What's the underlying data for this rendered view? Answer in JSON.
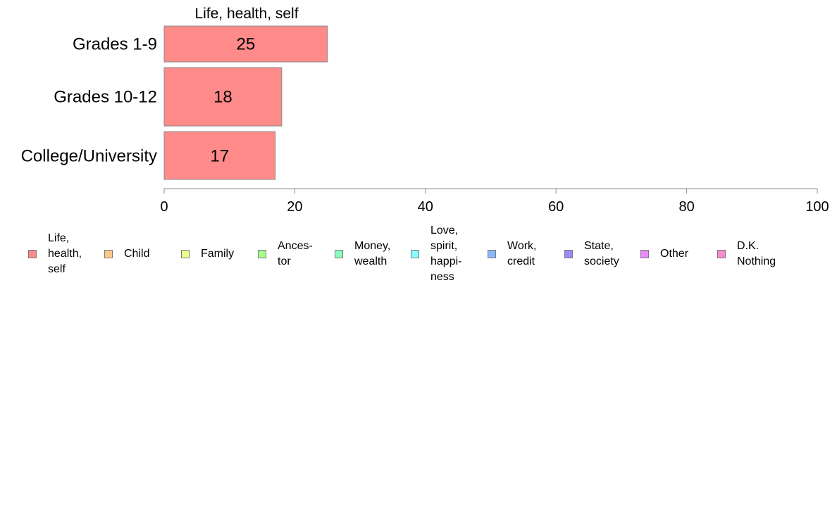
{
  "chart_data": {
    "type": "bar",
    "orientation": "horizontal",
    "stacked": true,
    "title": "Life, health, self",
    "categories": [
      "Grades 1-9",
      "Grades 10-12",
      "College/University"
    ],
    "series": [
      {
        "name": "Life,\nhealth,\nself",
        "color": "#ff8a8a",
        "values": [
          25,
          18,
          17
        ]
      }
    ],
    "xlim": [
      0,
      100
    ],
    "xticks": [
      0,
      20,
      40,
      60,
      80,
      100
    ],
    "grid": false,
    "legend_position": "bottom"
  },
  "legend": [
    {
      "label": "Life,\nhealth,\nself",
      "color": "#ff8a8a"
    },
    {
      "label": "Child",
      "color": "#ffc98a"
    },
    {
      "label": "Family",
      "color": "#ebff8a"
    },
    {
      "label": "Ances-\ntor",
      "color": "#a8ff8a"
    },
    {
      "label": "Money,\nwealth",
      "color": "#8affc0"
    },
    {
      "label": "Love,\nspirit,\nhappi-\nness",
      "color": "#8affff"
    },
    {
      "label": "Work,\ncredit",
      "color": "#8ab8ff"
    },
    {
      "label": "State,\nsociety",
      "color": "#9a8aff"
    },
    {
      "label": "Other",
      "color": "#ec8aff"
    },
    {
      "label": "D.K.\nNothing",
      "color": "#ff8ad0"
    }
  ]
}
